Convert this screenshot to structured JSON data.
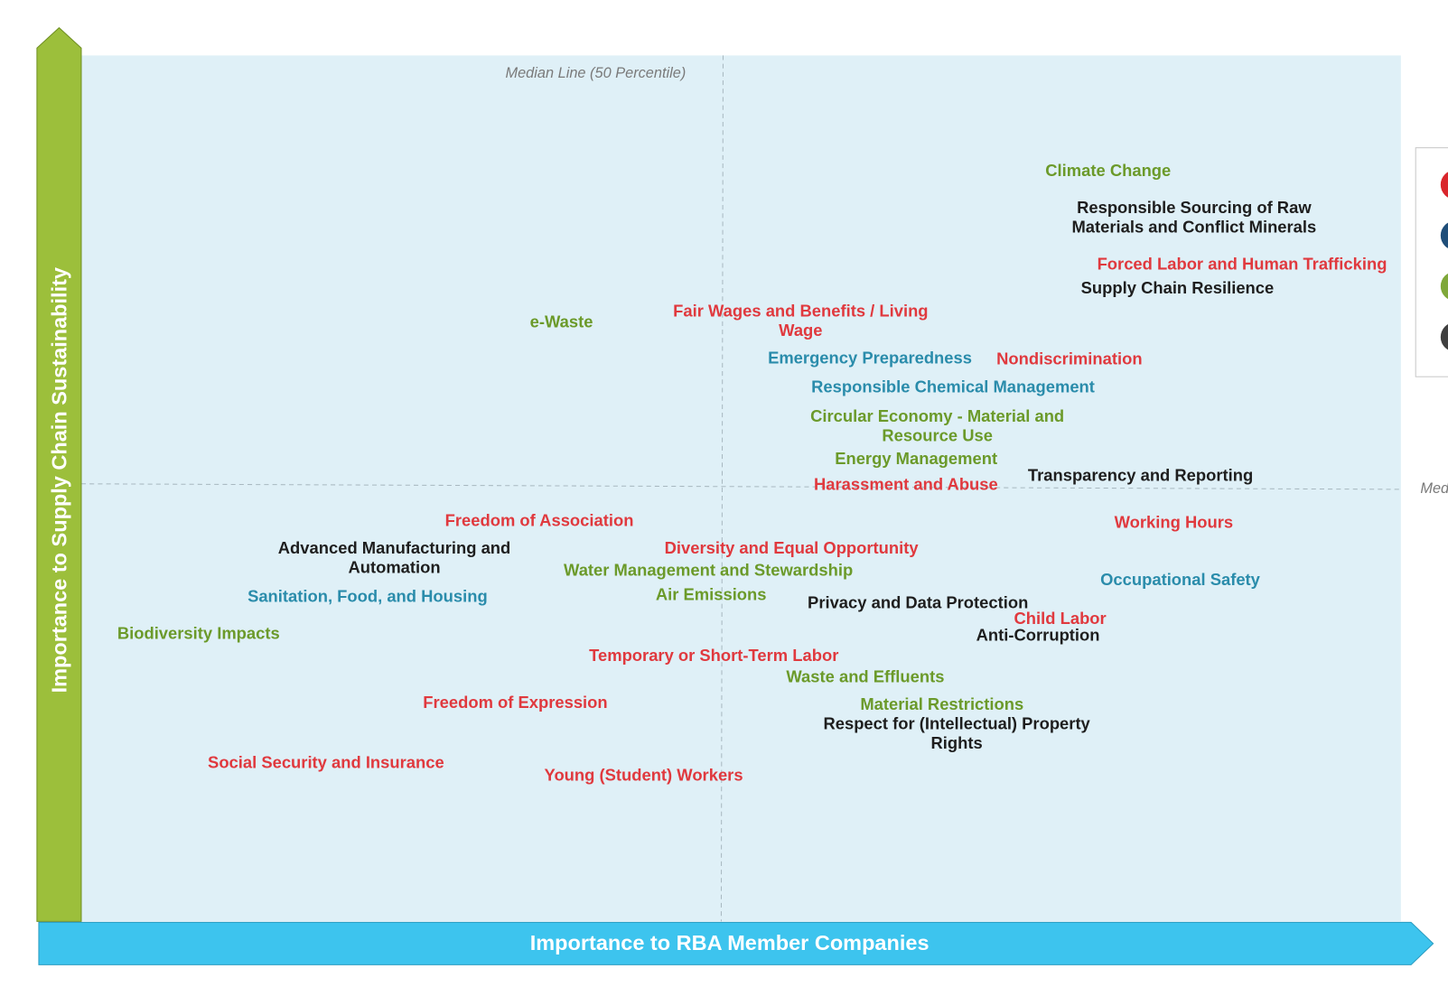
{
  "median_label": "Median Line (50 Percentile)",
  "y_axis_label": "Importance to Supply Chain Sustainability",
  "x_axis_label": "Importance to RBA Member Companies",
  "topics": [
    {
      "lines": [
        "Climate Change"
      ]
    },
    {
      "lines": [
        "Responsible Sourcing of Raw",
        "Materials and Conflict Minerals"
      ]
    },
    {
      "lines": [
        "Forced Labor and Human Trafficking"
      ]
    },
    {
      "lines": [
        "Supply Chain Resilience"
      ]
    },
    {
      "lines": [
        "e-Waste"
      ]
    },
    {
      "lines": [
        "Fair Wages and Benefits / Living",
        "Wage"
      ]
    },
    {
      "lines": [
        "Emergency Preparedness"
      ]
    },
    {
      "lines": [
        "Nondiscrimination"
      ]
    },
    {
      "lines": [
        "Responsible Chemical Management"
      ]
    },
    {
      "lines": [
        "Circular Economy - Material and",
        "Resource Use"
      ]
    },
    {
      "lines": [
        "Energy Management"
      ]
    },
    {
      "lines": [
        "Harassment and Abuse"
      ]
    },
    {
      "lines": [
        "Transparency and Reporting"
      ]
    },
    {
      "lines": [
        "Freedom of Association"
      ]
    },
    {
      "lines": [
        "Working Hours"
      ]
    },
    {
      "lines": [
        "Advanced Manufacturing and",
        "Automation"
      ]
    },
    {
      "lines": [
        "Diversity and Equal Opportunity"
      ]
    },
    {
      "lines": [
        "Water Management and Stewardship"
      ]
    },
    {
      "lines": [
        "Occupational Safety"
      ]
    },
    {
      "lines": [
        "Sanitation, Food, and Housing"
      ]
    },
    {
      "lines": [
        "Air Emissions"
      ]
    },
    {
      "lines": [
        "Privacy and Data Protection"
      ]
    },
    {
      "lines": [
        "Child Labor"
      ]
    },
    {
      "lines": [
        "Anti-Corruption"
      ]
    },
    {
      "lines": [
        "Biodiversity Impacts"
      ]
    },
    {
      "lines": [
        "Temporary or Short-Term Labor"
      ]
    },
    {
      "lines": [
        "Waste and Effluents"
      ]
    },
    {
      "lines": [
        "Freedom of Expression"
      ]
    },
    {
      "lines": [
        "Material Restrictions"
      ]
    },
    {
      "lines": [
        "Respect for (Intellectual) Property",
        "Rights"
      ]
    },
    {
      "lines": [
        "Social Security and Insurance"
      ]
    },
    {
      "lines": [
        "Young (Student) Workers"
      ]
    }
  ]
}
